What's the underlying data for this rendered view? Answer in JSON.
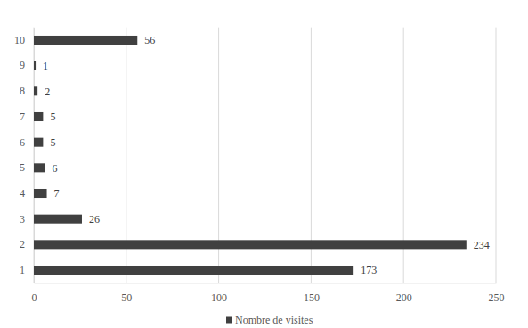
{
  "chart_data": {
    "type": "bar",
    "orientation": "horizontal",
    "categories": [
      "1",
      "2",
      "3",
      "4",
      "5",
      "6",
      "7",
      "8",
      "9",
      "10"
    ],
    "series": [
      {
        "name": "Nombre de visites",
        "color": "#404040",
        "values": [
          173,
          234,
          26,
          7,
          6,
          5,
          5,
          2,
          1,
          56
        ]
      }
    ],
    "xlim": [
      0,
      250
    ],
    "xticks": [
      0,
      50,
      100,
      150,
      200,
      250
    ],
    "grid": true,
    "data_labels": true,
    "legend": "bottom"
  }
}
